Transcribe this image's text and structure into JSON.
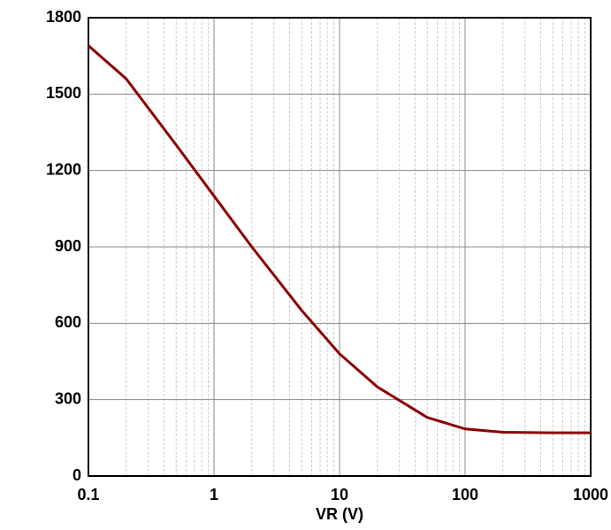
{
  "chart_data": {
    "type": "line",
    "x_label": "VR (V)",
    "x": [
      0.1,
      0.2,
      0.5,
      1,
      2,
      5,
      10,
      20,
      50,
      100,
      200,
      500,
      1000
    ],
    "series": [
      {
        "color": "#8b0000",
        "values": [
          1690,
          1560,
          1300,
          1100,
          900,
          650,
          480,
          350,
          230,
          185,
          172,
          170,
          170
        ]
      }
    ],
    "xlim": [
      0.1,
      1000
    ],
    "xticks": [
      0.1,
      1,
      10,
      100,
      1000
    ],
    "x_log": true,
    "ylim": [
      0,
      1800
    ],
    "yticks": [
      0,
      300,
      600,
      900,
      1200,
      1500,
      1800
    ],
    "grid": true
  }
}
